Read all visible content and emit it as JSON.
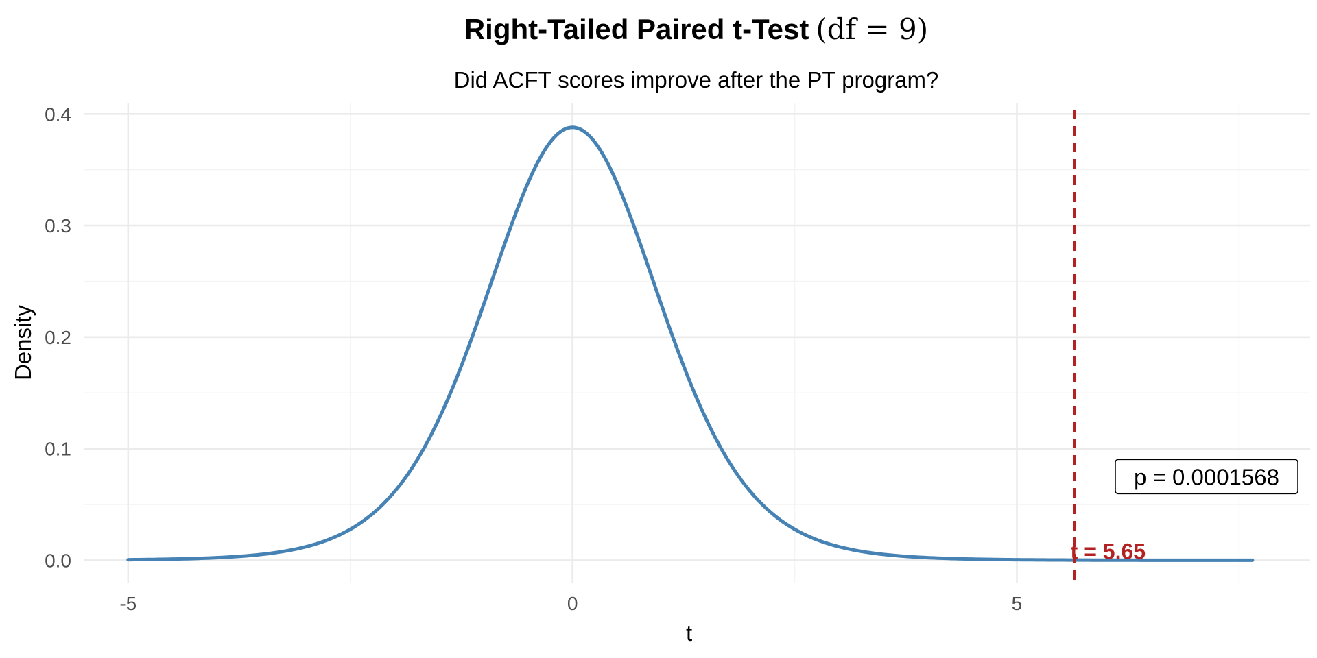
{
  "chart_data": {
    "type": "line",
    "title": "Right-Tailed Paired t-Test",
    "title_math": "(df = 9)",
    "subtitle": "Did ACFT scores improve after the PT program?",
    "xlabel": "t",
    "ylabel": "Density",
    "df": 9,
    "xlim": [
      -5.5,
      8.3
    ],
    "ylim": [
      -0.02,
      0.41
    ],
    "x_range_curve": [
      -5,
      7.65
    ],
    "x_ticks": [
      -5,
      0,
      5
    ],
    "x_tick_labels": [
      "-5",
      "0",
      "5"
    ],
    "x_minor_ticks": [
      -2.5,
      2.5,
      7.5
    ],
    "y_ticks": [
      0.0,
      0.1,
      0.2,
      0.3,
      0.4
    ],
    "y_tick_labels": [
      "0.0",
      "0.1",
      "0.2",
      "0.3",
      "0.4"
    ],
    "y_minor_ticks": [
      0.05,
      0.15,
      0.25,
      0.35
    ],
    "grid": true,
    "legend": "none",
    "series": [
      {
        "name": "",
        "color": "#4682b4",
        "distribution": "Student t, df = 9"
      }
    ],
    "t_statistic": 5.65,
    "t_stat_label": "t = 5.65",
    "t_stat_color": "#b22222",
    "p_value_label": "p = 0.0001568"
  }
}
